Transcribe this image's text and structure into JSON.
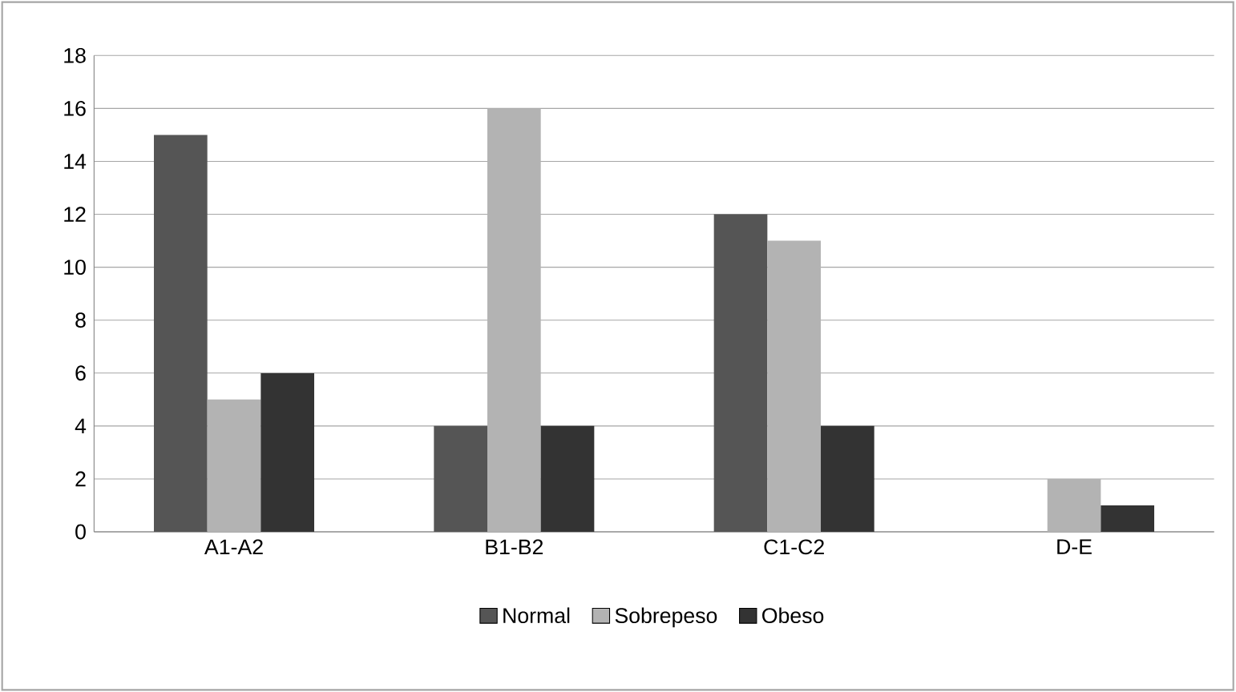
{
  "chart_data": {
    "type": "bar",
    "categories": [
      "A1-A2",
      "B1-B2",
      "C1-C2",
      "D-E"
    ],
    "series": [
      {
        "name": "Normal",
        "color": "#555555",
        "values": [
          15,
          4,
          12,
          0
        ]
      },
      {
        "name": "Sobrepeso",
        "color": "#b3b3b3",
        "values": [
          5,
          16,
          11,
          2
        ]
      },
      {
        "name": "Obeso",
        "color": "#333333",
        "values": [
          6,
          4,
          4,
          1
        ]
      }
    ],
    "ylim": [
      0,
      18
    ],
    "yticks": [
      0,
      2,
      4,
      6,
      8,
      10,
      12,
      14,
      16,
      18
    ],
    "grid": "y",
    "legend": "bottom"
  }
}
